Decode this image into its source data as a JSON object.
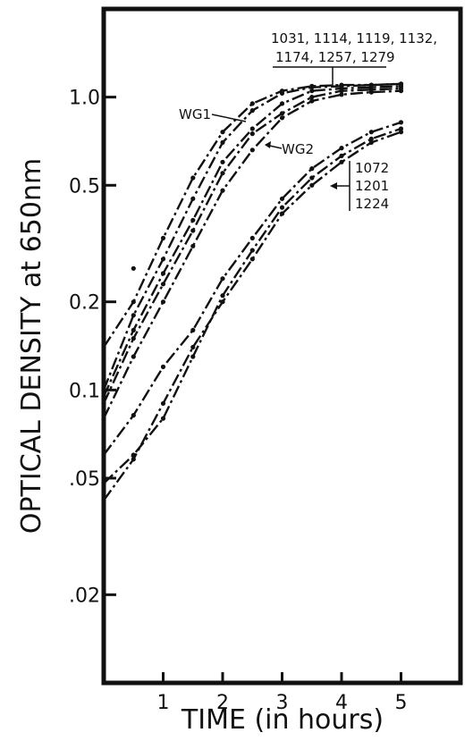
{
  "chart_data": {
    "type": "line",
    "title": "",
    "xlabel": "TIME (in hours)",
    "ylabel": "OPTICAL DENSITY at 650nm",
    "yscale": "log",
    "xlim": [
      0,
      6
    ],
    "ylim": [
      0.01,
      2.0
    ],
    "grid": false,
    "xticks": [
      {
        "value": 1,
        "label": "1"
      },
      {
        "value": 2,
        "label": "2"
      },
      {
        "value": 3,
        "label": "3"
      },
      {
        "value": 4,
        "label": "4"
      },
      {
        "value": 5,
        "label": "5"
      }
    ],
    "yticks": [
      {
        "value": 1.0,
        "label": "1.0"
      },
      {
        "value": 0.5,
        "label": "0.5"
      },
      {
        "value": 0.2,
        "label": "0.2"
      },
      {
        "value": 0.1,
        "label": "0.1"
      },
      {
        "value": 0.05,
        "label": ".05"
      },
      {
        "value": 0.02,
        "label": ".02"
      }
    ],
    "series": [
      {
        "name": "WG1",
        "x": [
          0,
          0.5,
          1,
          1.5,
          2,
          2.5,
          3,
          3.5,
          4,
          4.5,
          5
        ],
        "y": [
          0.14,
          0.2,
          0.33,
          0.53,
          0.76,
          0.95,
          1.05,
          1.09,
          1.1,
          1.1,
          1.11
        ]
      },
      {
        "x": [
          0,
          0.5,
          1,
          1.5,
          2,
          2.5,
          3,
          3.5,
          4,
          4.5,
          5
        ],
        "y": [
          0.1,
          0.18,
          0.28,
          0.45,
          0.7,
          0.9,
          1.03,
          1.08,
          1.09,
          1.1,
          1.11
        ]
      },
      {
        "x": [
          0,
          0.5,
          1,
          1.5,
          2,
          2.5,
          3,
          3.5,
          4,
          4.5,
          5
        ],
        "y": [
          0.095,
          0.16,
          0.25,
          0.38,
          0.6,
          0.78,
          0.95,
          1.05,
          1.07,
          1.08,
          1.09
        ]
      },
      {
        "name": "WG2",
        "x": [
          0,
          0.5,
          1,
          1.5,
          2,
          2.5,
          3,
          3.5,
          4,
          4.5,
          5
        ],
        "y": [
          0.09,
          0.15,
          0.23,
          0.35,
          0.55,
          0.75,
          0.88,
          1.0,
          1.05,
          1.06,
          1.07
        ]
      },
      {
        "x": [
          0,
          0.5,
          1,
          1.5,
          2,
          2.5,
          3,
          3.5,
          4,
          4.5,
          5
        ],
        "y": [
          0.08,
          0.13,
          0.2,
          0.31,
          0.48,
          0.66,
          0.85,
          0.97,
          1.02,
          1.04,
          1.05
        ]
      },
      {
        "x": [
          0,
          0.5,
          1,
          1.5,
          2,
          2.5,
          3,
          3.5,
          4,
          4.5,
          5
        ],
        "y": [
          0.06,
          0.082,
          0.12,
          0.16,
          0.24,
          0.33,
          0.45,
          0.57,
          0.67,
          0.76,
          0.82
        ]
      },
      {
        "x": [
          0,
          0.5,
          1,
          1.5,
          2,
          2.5,
          3,
          3.5,
          4,
          4.5,
          5
        ],
        "y": [
          0.048,
          0.06,
          0.08,
          0.13,
          0.21,
          0.3,
          0.42,
          0.53,
          0.63,
          0.72,
          0.78
        ]
      },
      {
        "x": [
          0,
          0.5,
          1,
          1.5,
          2,
          2.5,
          3,
          3.5,
          4,
          4.5,
          5
        ],
        "y": [
          0.042,
          0.058,
          0.09,
          0.14,
          0.2,
          0.28,
          0.4,
          0.5,
          0.6,
          0.7,
          0.76
        ]
      }
    ],
    "stray_points": [
      {
        "x": 0.5,
        "y": 0.26
      }
    ],
    "annotations": [
      {
        "text": "1031, 1114, 1119, 1132,"
      },
      {
        "text": "1174, 1257, 1279"
      },
      {
        "text": "WG1"
      },
      {
        "text": "WG2"
      },
      {
        "text": "1072"
      },
      {
        "text": "1201"
      },
      {
        "text": "1224"
      }
    ]
  }
}
